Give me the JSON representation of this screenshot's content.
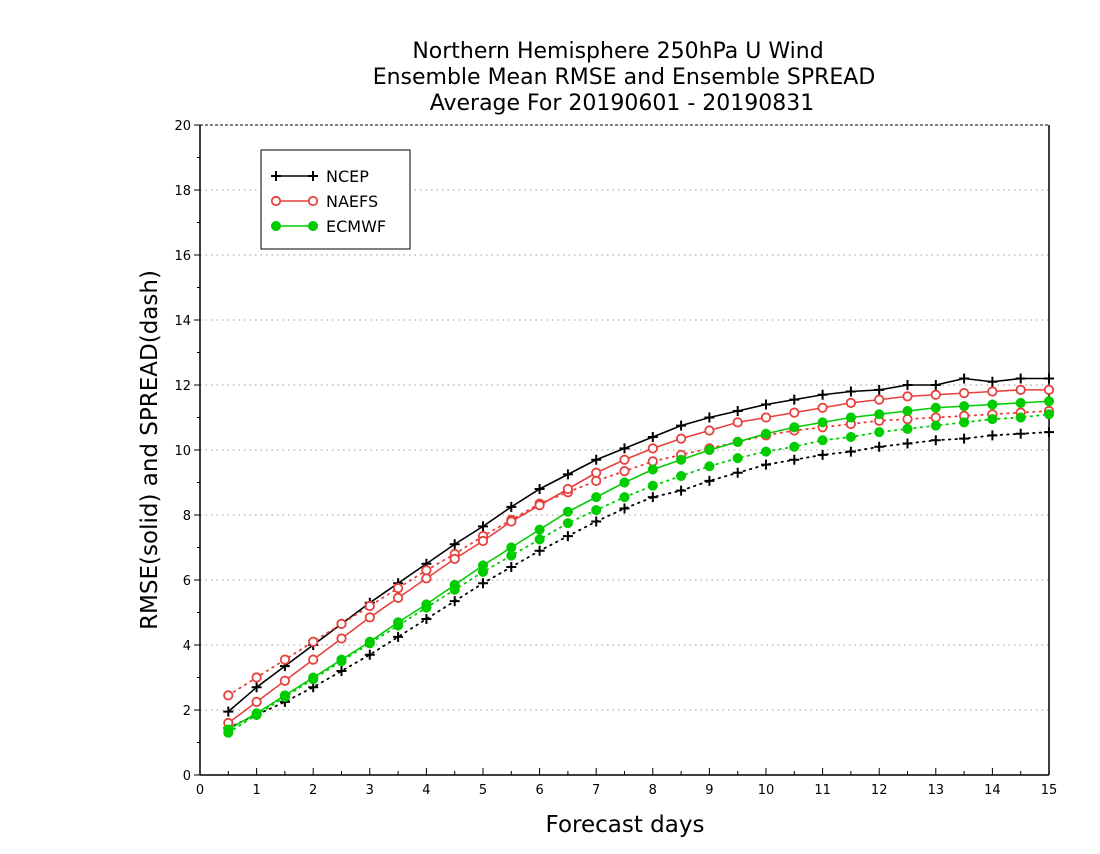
{
  "chart_data": {
    "type": "line",
    "title_lines": [
      "Northern Hemisphere 250hPa U Wind",
      "Ensemble Mean RMSE and Ensemble SPREAD",
      "Average For 20190601 - 20190831"
    ],
    "xlabel": "Forecast days",
    "ylabel": "RMSE(solid) and SPREAD(dash)",
    "xlim": [
      0,
      15
    ],
    "ylim": [
      0,
      20
    ],
    "xticks": [
      "0",
      "1",
      "2",
      "3",
      "4",
      "5",
      "6",
      "7",
      "8",
      "9",
      "10",
      "11",
      "12",
      "13",
      "14",
      "15"
    ],
    "yticks": [
      "0",
      "2",
      "4",
      "6",
      "8",
      "10",
      "12",
      "14",
      "16",
      "18",
      "20"
    ],
    "grid": "horizontal dotted",
    "legend_position": "top-left",
    "x": [
      0.5,
      1,
      1.5,
      2,
      2.5,
      3,
      3.5,
      4,
      4.5,
      5,
      5.5,
      6,
      6.5,
      7,
      7.5,
      8,
      8.5,
      9,
      9.5,
      10,
      10.5,
      11,
      11.5,
      12,
      12.5,
      13,
      13.5,
      14,
      14.5,
      15
    ],
    "series": [
      {
        "name": "NCEP",
        "color": "#000000",
        "marker": "plus",
        "rmse": [
          1.95,
          2.7,
          3.35,
          4.0,
          4.65,
          5.3,
          5.9,
          6.5,
          7.1,
          7.65,
          8.25,
          8.8,
          9.25,
          9.7,
          10.05,
          10.4,
          10.75,
          11.0,
          11.2,
          11.4,
          11.55,
          11.7,
          11.8,
          11.85,
          12.0,
          12.0,
          12.2,
          12.1,
          12.2,
          12.2
        ],
        "spread": [
          1.45,
          1.85,
          2.25,
          2.7,
          3.2,
          3.7,
          4.25,
          4.8,
          5.35,
          5.9,
          6.4,
          6.9,
          7.35,
          7.8,
          8.2,
          8.55,
          8.75,
          9.05,
          9.3,
          9.55,
          9.7,
          9.85,
          9.95,
          10.1,
          10.2,
          10.3,
          10.35,
          10.45,
          10.5,
          10.55
        ]
      },
      {
        "name": "NAEFS",
        "color": "#e8403c",
        "marker": "open-circle",
        "rmse": [
          1.6,
          2.25,
          2.9,
          3.55,
          4.2,
          4.85,
          5.45,
          6.05,
          6.65,
          7.2,
          7.8,
          8.3,
          8.8,
          9.3,
          9.7,
          10.05,
          10.35,
          10.6,
          10.85,
          11.0,
          11.15,
          11.3,
          11.45,
          11.55,
          11.65,
          11.7,
          11.75,
          11.8,
          11.85,
          11.85
        ],
        "spread": [
          2.45,
          3.0,
          3.55,
          4.1,
          4.65,
          5.2,
          5.75,
          6.3,
          6.8,
          7.35,
          7.85,
          8.35,
          8.7,
          9.05,
          9.35,
          9.65,
          9.85,
          10.05,
          10.25,
          10.45,
          10.6,
          10.7,
          10.8,
          10.9,
          10.95,
          11.0,
          11.05,
          11.1,
          11.15,
          11.2
        ]
      },
      {
        "name": "ECMWF",
        "color": "#00cc00",
        "marker": "filled-circle",
        "rmse": [
          1.4,
          1.9,
          2.45,
          3.0,
          3.55,
          4.1,
          4.7,
          5.25,
          5.85,
          6.45,
          7.0,
          7.55,
          8.1,
          8.55,
          9.0,
          9.4,
          9.7,
          10.0,
          10.25,
          10.5,
          10.7,
          10.85,
          11.0,
          11.1,
          11.2,
          11.3,
          11.35,
          11.4,
          11.45,
          11.5
        ],
        "spread": [
          1.3,
          1.85,
          2.4,
          2.95,
          3.5,
          4.05,
          4.6,
          5.15,
          5.7,
          6.25,
          6.75,
          7.25,
          7.75,
          8.15,
          8.55,
          8.9,
          9.2,
          9.5,
          9.75,
          9.95,
          10.1,
          10.3,
          10.4,
          10.55,
          10.65,
          10.75,
          10.85,
          10.95,
          11.0,
          11.1
        ]
      }
    ]
  }
}
